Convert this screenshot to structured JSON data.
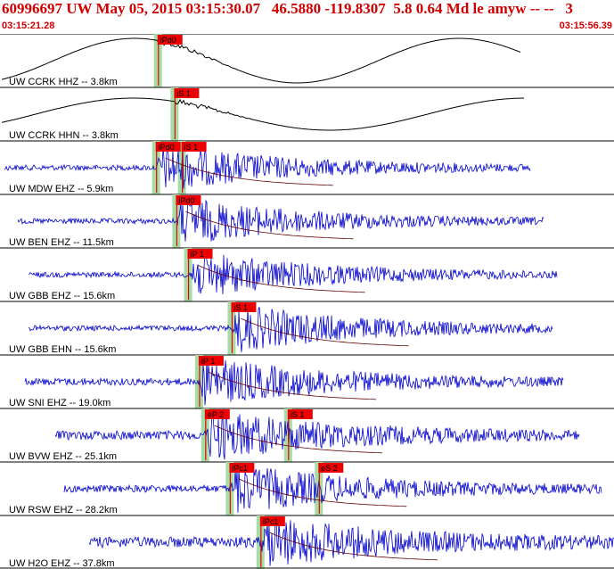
{
  "header": {
    "title": "60996697 UW May 05, 2015 03:15:30.07   46.5880 -119.8307  5.8 0.64 Md le amyw -- --   3",
    "time_start": "03:15:21.28",
    "time_end": "03:15:56.39"
  },
  "colors": {
    "background": "#ffffff",
    "header_text": "#d10000",
    "trace_accel": "#000000",
    "trace_velocity": "#0000cc",
    "pick_marker": "#ee0000",
    "pick_window": "#a6dca6",
    "theoretical_curve": "#660000"
  },
  "traces": [
    {
      "label": "UW CCRK HHZ -- 3.8km",
      "kind": "sine",
      "picks": [
        {
          "label": "iPd0",
          "time": 0.258
        }
      ]
    },
    {
      "label": "UW CCRK HHN -- 3.8km",
      "kind": "sine",
      "picks": [
        {
          "label": "iS 1",
          "time": 0.285
        }
      ]
    },
    {
      "label": "UW MDW EHZ -- 5.9km",
      "kind": "noise",
      "picks": [
        {
          "label": "iPd0",
          "time": 0.255
        },
        {
          "label": "iS 1",
          "time": 0.297
        }
      ]
    },
    {
      "label": "UW BEN EHZ -- 11.5km",
      "kind": "noise",
      "picks": [
        {
          "label": "iPd0",
          "time": 0.288
        }
      ]
    },
    {
      "label": "UW GBB EHZ -- 15.6km",
      "kind": "noise",
      "picks": [
        {
          "label": "iP 1",
          "time": 0.307
        }
      ]
    },
    {
      "label": "UW GBB EHN -- 15.6km",
      "kind": "noise",
      "picks": [
        {
          "label": "iS 1",
          "time": 0.378
        }
      ]
    },
    {
      "label": "UW SNI EHZ -- 19.0km",
      "kind": "noise",
      "picks": [
        {
          "label": "iP 1",
          "time": 0.325
        }
      ]
    },
    {
      "label": "UW BVW EHZ -- 25.1km",
      "kind": "noise",
      "picks": [
        {
          "label": "eP 2",
          "time": 0.335
        },
        {
          "label": "iS 1",
          "time": 0.47
        }
      ]
    },
    {
      "label": "UW RSW EHZ -- 28.2km",
      "kind": "noise",
      "picks": [
        {
          "label": "iPc1",
          "time": 0.375
        },
        {
          "label": "eS 2",
          "time": 0.52
        }
      ]
    },
    {
      "label": "UW H2O EHZ -- 37.8km",
      "kind": "noise",
      "picks": [
        {
          "label": "iPc1",
          "time": 0.425
        }
      ]
    }
  ]
}
